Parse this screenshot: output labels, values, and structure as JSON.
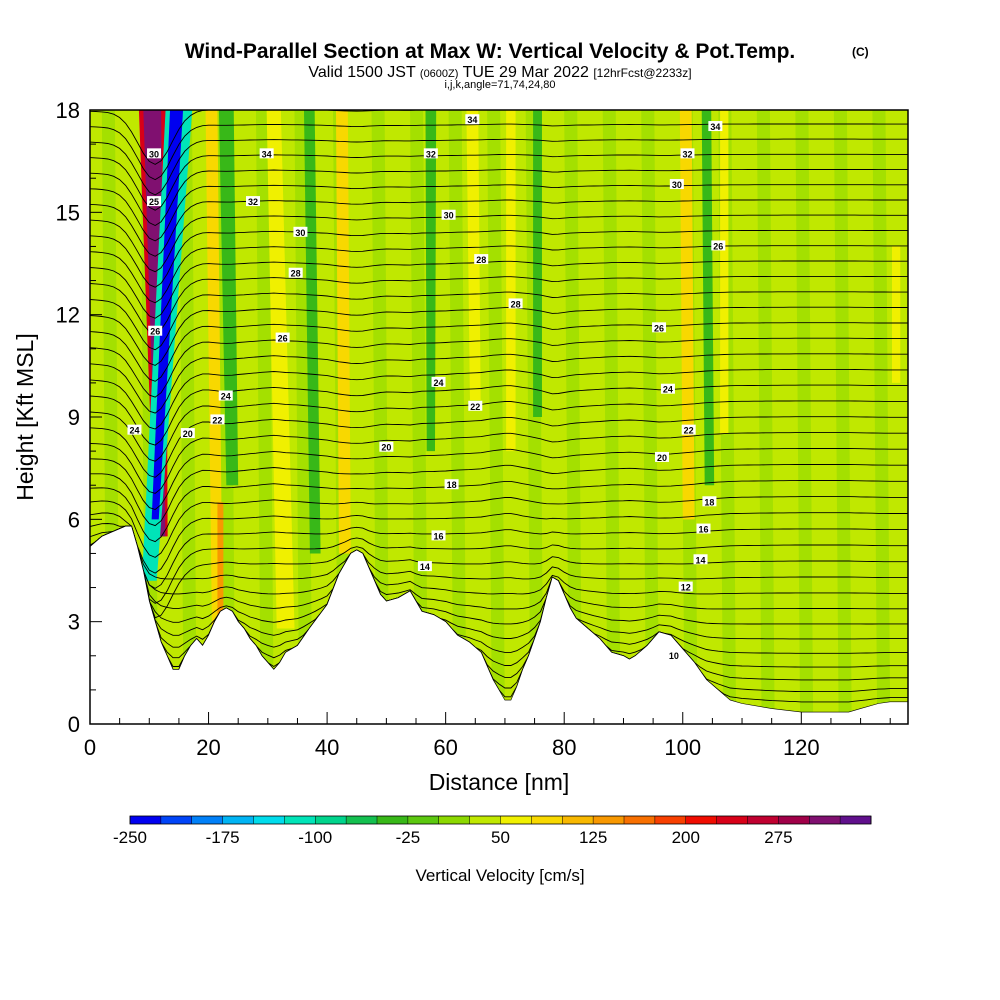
{
  "header": {
    "title": "Wind-Parallel Section at Max W: Vertical Velocity & Pot.Temp.",
    "title_mark": "(C)",
    "subtitle_main_a": "Valid 1500 JST",
    "subtitle_small_a": "(0600Z)",
    "subtitle_main_b": "TUE 29 Mar 2022",
    "subtitle_small_b": "[12hrFcst@2233z]",
    "sub2": "i,j,k,angle=71,74,24,80"
  },
  "chart_data": {
    "type": "heatmap",
    "title": "Wind-Parallel Section at Max W: Vertical Velocity & Pot.Temp.",
    "xlabel": "Distance [nm]",
    "ylabel": "Height [Kft MSL]",
    "xlim": [
      0,
      138
    ],
    "ylim": [
      0,
      18
    ],
    "xticks": [
      0,
      20,
      40,
      60,
      80,
      100,
      120
    ],
    "yticks": [
      0,
      3,
      6,
      9,
      12,
      15,
      18
    ],
    "colorbar": {
      "label": "Vertical Velocity [cm/s]",
      "levels": [
        -250,
        -225,
        -200,
        -175,
        -150,
        -125,
        -100,
        -75,
        -50,
        -25,
        0,
        25,
        50,
        75,
        100,
        125,
        150,
        175,
        200,
        225,
        250,
        275,
        300,
        325
      ],
      "tick_labels": [
        "-250",
        "-175",
        "-100",
        "-25",
        "50",
        "125",
        "200",
        "275"
      ],
      "colors": [
        "#0000f0",
        "#0044f8",
        "#0080f8",
        "#00b4f4",
        "#00dcec",
        "#00e4b8",
        "#00d48c",
        "#14c050",
        "#38b818",
        "#5cc810",
        "#8cd800",
        "#c0e800",
        "#f0f000",
        "#f8d800",
        "#f8b800",
        "#f89800",
        "#f87000",
        "#f84000",
        "#f00c00",
        "#d80018",
        "#c00030",
        "#a00048",
        "#801070",
        "#60108c"
      ]
    },
    "terrain_profile": {
      "distance_nm": [
        0,
        2,
        6,
        7,
        8,
        9,
        10,
        11,
        12,
        13,
        14,
        15,
        16,
        17,
        18,
        19,
        20,
        21,
        22,
        23,
        24,
        25,
        26,
        27,
        28,
        29,
        30,
        31,
        32,
        33,
        35,
        37,
        40,
        42,
        44,
        45,
        46,
        47,
        48,
        49,
        50,
        52,
        54,
        55,
        56,
        58,
        60,
        62,
        64,
        66,
        67,
        68,
        69,
        70,
        71,
        72,
        73,
        74,
        76,
        77,
        78,
        79,
        80,
        81,
        82,
        84,
        86,
        88,
        90,
        91,
        92,
        94,
        96,
        98,
        100,
        102,
        104,
        106,
        108,
        110,
        115,
        120,
        122,
        124,
        126,
        128,
        130,
        133,
        135,
        138
      ],
      "height_kft": [
        5.2,
        5.5,
        5.8,
        5.8,
        5.2,
        4.5,
        3.6,
        3.0,
        2.4,
        2.0,
        1.6,
        1.6,
        2.0,
        2.3,
        2.5,
        2.3,
        2.6,
        3.0,
        3.3,
        3.4,
        3.3,
        3.0,
        2.8,
        2.5,
        2.3,
        2.0,
        1.8,
        1.6,
        1.8,
        2.1,
        2.3,
        2.8,
        3.5,
        4.4,
        5.0,
        5.1,
        5.0,
        4.6,
        4.2,
        3.8,
        3.6,
        3.7,
        3.9,
        3.6,
        3.3,
        3.2,
        3.0,
        2.6,
        2.4,
        2.1,
        1.7,
        1.3,
        1.0,
        0.7,
        0.7,
        1.1,
        1.6,
        2.0,
        3.0,
        3.7,
        4.3,
        4.2,
        3.8,
        3.4,
        3.1,
        2.8,
        2.5,
        2.1,
        2.0,
        1.9,
        2.0,
        2.3,
        2.7,
        2.6,
        2.2,
        1.8,
        1.3,
        1.0,
        0.7,
        0.6,
        0.45,
        0.35,
        0.35,
        0.35,
        0.35,
        0.35,
        0.45,
        0.6,
        0.65,
        0.65
      ]
    },
    "vertical_velocity_cells": {
      "units": "cm/s",
      "background": 25,
      "features": [
        {
          "x_top": 10.5,
          "x_bottom": 12.0,
          "y_bottom": 5.5,
          "y_top": 18,
          "w_top": 4.5,
          "w_bottom": 2.2,
          "value": 225
        },
        {
          "x_top": 10.5,
          "x_bottom": 12.0,
          "y_bottom": 5.5,
          "y_top": 18,
          "w_top": 3.0,
          "w_bottom": 1.4,
          "value": 300
        },
        {
          "x_top": 15.0,
          "x_bottom": 10.0,
          "y_bottom": 4.2,
          "y_top": 18,
          "w_top": 4.5,
          "w_bottom": 2.5,
          "value": -120
        },
        {
          "x_top": 14.6,
          "x_bottom": 11.0,
          "y_bottom": 6.0,
          "y_top": 18,
          "w_top": 2.2,
          "w_bottom": 1.2,
          "value": -230
        },
        {
          "x_top": 23.0,
          "x_bottom": 24.0,
          "y_bottom": 7.0,
          "y_top": 18,
          "w_top": 2.5,
          "w_bottom": 2.0,
          "value": -40
        },
        {
          "x_top": 20.5,
          "x_bottom": 21.5,
          "y_bottom": 2.5,
          "y_top": 18,
          "w_top": 2.0,
          "w_bottom": 1.8,
          "value": 80
        },
        {
          "x_top": 22.0,
          "x_bottom": 22.0,
          "y_bottom": 2.5,
          "y_top": 6.5,
          "w_top": 1.0,
          "w_bottom": 1.0,
          "value": 130
        },
        {
          "x_top": 31.0,
          "x_bottom": 33.0,
          "y_bottom": 2.8,
          "y_top": 18,
          "w_top": 2.4,
          "w_bottom": 3.0,
          "value": 70
        },
        {
          "x_top": 42.5,
          "x_bottom": 43.0,
          "y_bottom": 5.0,
          "y_top": 18,
          "w_top": 2.0,
          "w_bottom": 2.0,
          "value": 90
        },
        {
          "x_top": 37.0,
          "x_bottom": 38.0,
          "y_bottom": 5.0,
          "y_top": 18,
          "w_top": 1.8,
          "w_bottom": 1.8,
          "value": -40
        },
        {
          "x_top": 57.5,
          "x_bottom": 57.5,
          "y_bottom": 8.0,
          "y_top": 18,
          "w_top": 1.8,
          "w_bottom": 1.4,
          "value": -40
        },
        {
          "x_top": 64.5,
          "x_bottom": 65.0,
          "y_bottom": 9.5,
          "y_top": 18,
          "w_top": 2.0,
          "w_bottom": 1.8,
          "value": 60
        },
        {
          "x_top": 71.0,
          "x_bottom": 71.0,
          "y_bottom": 8.0,
          "y_top": 18,
          "w_top": 1.6,
          "w_bottom": 1.6,
          "value": 60
        },
        {
          "x_top": 75.5,
          "x_bottom": 75.5,
          "y_bottom": 9.0,
          "y_top": 18,
          "w_top": 1.5,
          "w_bottom": 1.5,
          "value": -40
        },
        {
          "x_top": 100.5,
          "x_bottom": 101.0,
          "y_bottom": 6.0,
          "y_top": 18,
          "w_top": 2.0,
          "w_bottom": 2.0,
          "value": 80
        },
        {
          "x_top": 104.0,
          "x_bottom": 104.5,
          "y_bottom": 7.0,
          "y_top": 18,
          "w_top": 1.6,
          "w_bottom": 1.6,
          "value": -40
        },
        {
          "x_top": 107.0,
          "x_bottom": 107.0,
          "y_bottom": 8.5,
          "y_top": 18,
          "w_top": 1.4,
          "w_bottom": 1.4,
          "value": 60
        },
        {
          "x_top": 136.0,
          "x_bottom": 136.0,
          "y_bottom": 10.0,
          "y_top": 14.0,
          "w_top": 1.4,
          "w_bottom": 1.4,
          "value": 60
        }
      ]
    },
    "potential_temperature_contours": {
      "units": "C",
      "labels": [
        {
          "text": "30",
          "x": 10.8,
          "y": 16.7
        },
        {
          "text": "25",
          "x": 10.8,
          "y": 15.3
        },
        {
          "text": "26",
          "x": 11.0,
          "y": 11.5
        },
        {
          "text": "24",
          "x": 7.5,
          "y": 8.6
        },
        {
          "text": "20",
          "x": 16.5,
          "y": 8.5
        },
        {
          "text": "24",
          "x": 22.9,
          "y": 9.6
        },
        {
          "text": "22",
          "x": 21.5,
          "y": 8.9
        },
        {
          "text": "34",
          "x": 29.8,
          "y": 16.7
        },
        {
          "text": "32",
          "x": 27.5,
          "y": 15.3
        },
        {
          "text": "30",
          "x": 35.5,
          "y": 14.4
        },
        {
          "text": "28",
          "x": 34.7,
          "y": 13.2
        },
        {
          "text": "26",
          "x": 32.5,
          "y": 11.3
        },
        {
          "text": "34",
          "x": 64.5,
          "y": 17.7
        },
        {
          "text": "32",
          "x": 57.5,
          "y": 16.7
        },
        {
          "text": "30",
          "x": 60.5,
          "y": 14.9
        },
        {
          "text": "28",
          "x": 66.0,
          "y": 13.6
        },
        {
          "text": "28",
          "x": 71.8,
          "y": 12.3
        },
        {
          "text": "24",
          "x": 58.8,
          "y": 10.0
        },
        {
          "text": "22",
          "x": 65.0,
          "y": 9.3
        },
        {
          "text": "20",
          "x": 50.0,
          "y": 8.1
        },
        {
          "text": "18",
          "x": 61.0,
          "y": 7.0
        },
        {
          "text": "16",
          "x": 58.8,
          "y": 5.5
        },
        {
          "text": "14",
          "x": 56.5,
          "y": 4.6
        },
        {
          "text": "34",
          "x": 105.5,
          "y": 17.5
        },
        {
          "text": "32",
          "x": 100.8,
          "y": 16.7
        },
        {
          "text": "30",
          "x": 99.0,
          "y": 15.8
        },
        {
          "text": "26",
          "x": 106.0,
          "y": 14.0
        },
        {
          "text": "26",
          "x": 96.0,
          "y": 11.6
        },
        {
          "text": "24",
          "x": 97.5,
          "y": 9.8
        },
        {
          "text": "22",
          "x": 101.0,
          "y": 8.6
        },
        {
          "text": "20",
          "x": 96.5,
          "y": 7.8
        },
        {
          "text": "18",
          "x": 104.5,
          "y": 6.5
        },
        {
          "text": "16",
          "x": 103.5,
          "y": 5.7
        },
        {
          "text": "14",
          "x": 103.0,
          "y": 4.8
        },
        {
          "text": "12",
          "x": 100.5,
          "y": 4.0
        },
        {
          "text": "10",
          "x": 98.5,
          "y": 2.0
        }
      ]
    }
  }
}
